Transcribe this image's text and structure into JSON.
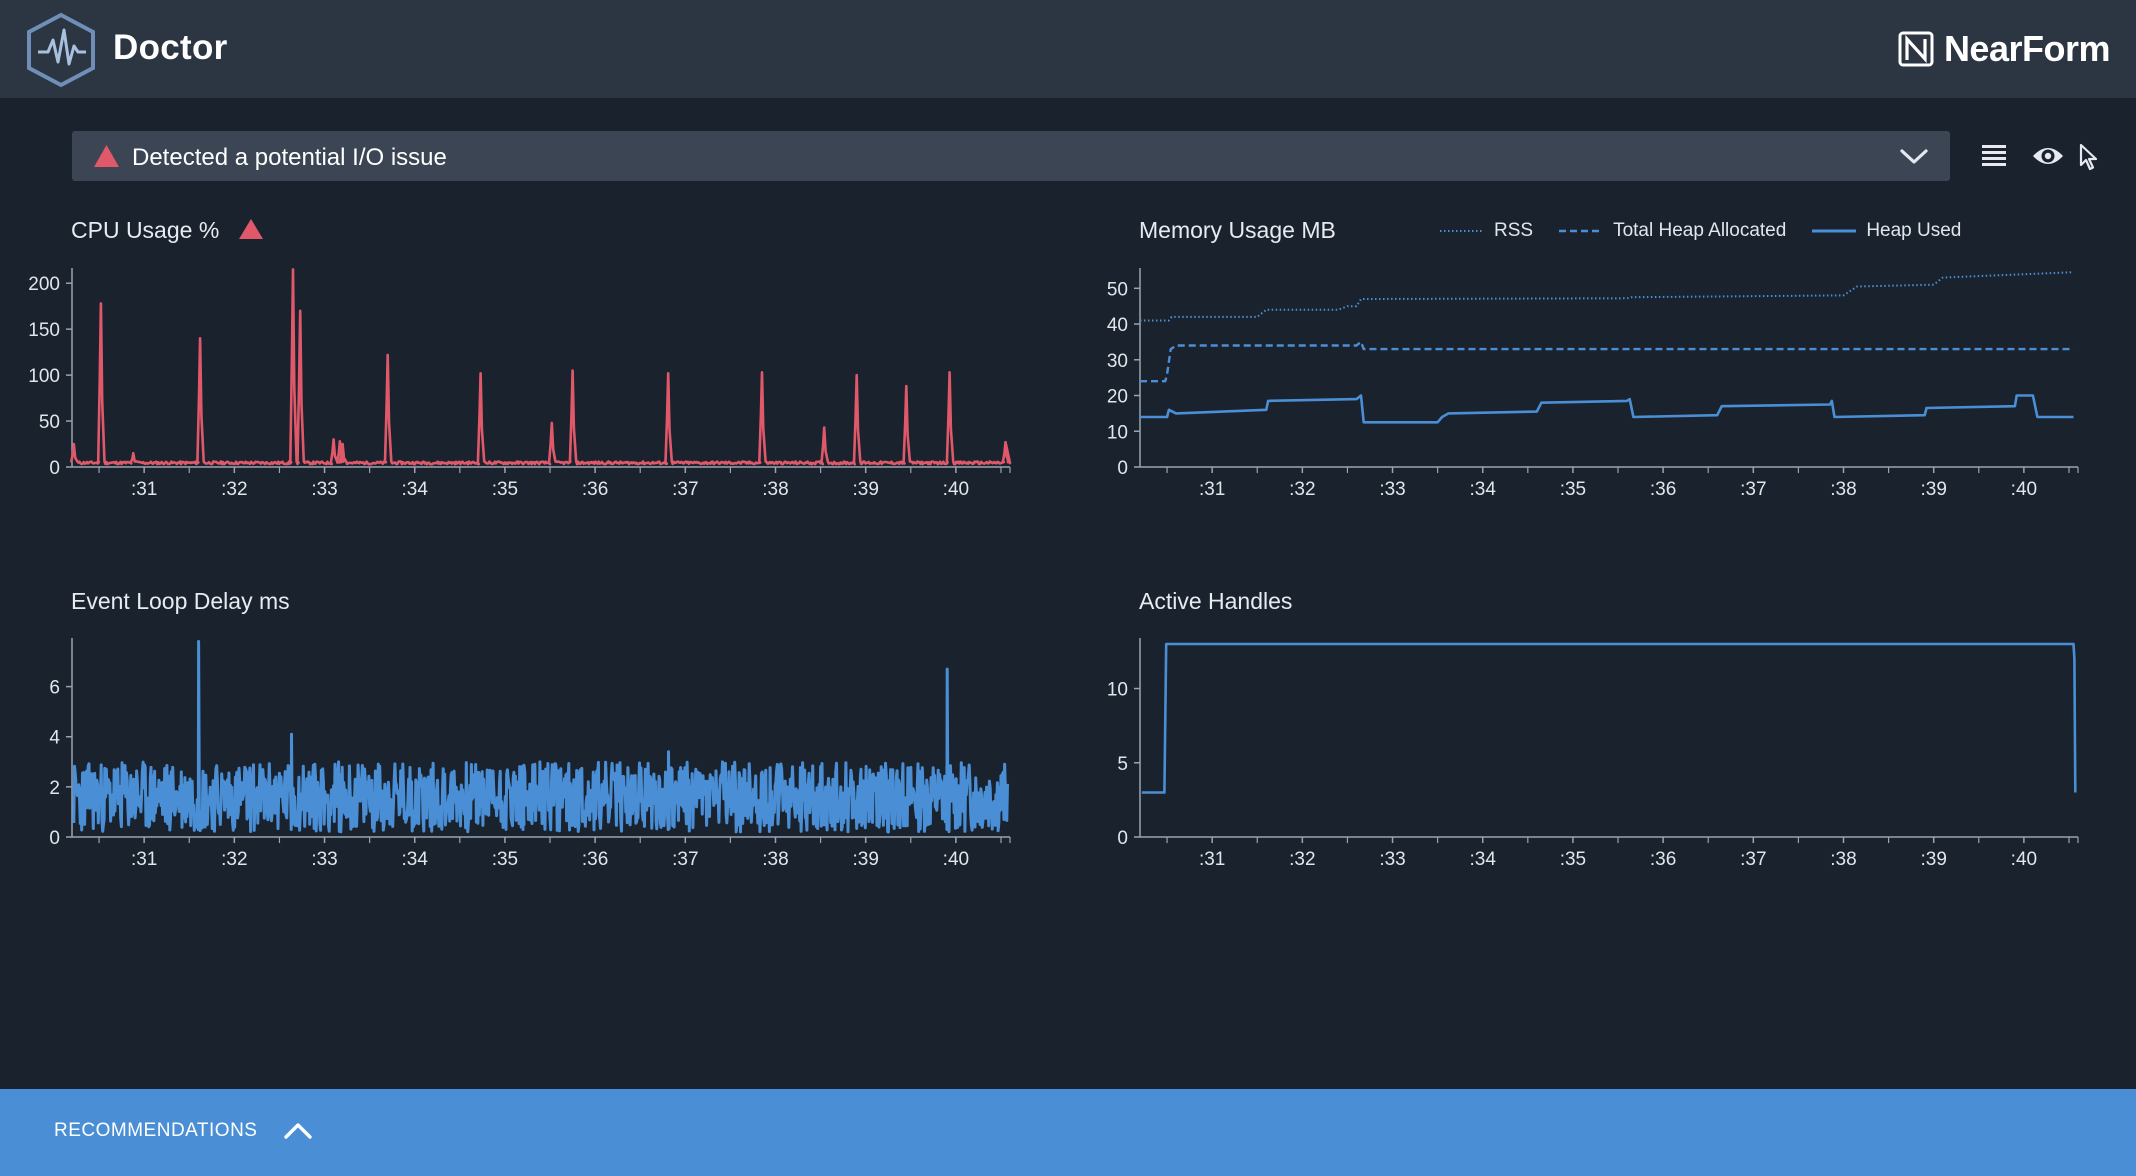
{
  "header": {
    "app_title": "Doctor",
    "brand_name": "NearForm",
    "logo_icon": "heartbeat-hexagon-icon",
    "brand_icon": "nearform-n-icon"
  },
  "alert": {
    "text": "Detected a potential I/O issue",
    "icon": "warning-triangle-icon",
    "color": "#e0596b"
  },
  "toolbar": {
    "items": [
      "list-icon",
      "eye-icon",
      "cursor-icon"
    ]
  },
  "footer": {
    "label": "RECOMMENDATIONS",
    "icon": "chevron-up-icon"
  },
  "colors": {
    "cpu_line": "#e0596b",
    "blue_line": "#4a8fd6",
    "axis": "#9aa4b2",
    "background": "#1a222d"
  },
  "chart_data": [
    {
      "id": "cpu",
      "type": "line",
      "title": "CPU Usage %",
      "warning": true,
      "x_ticks": [
        ":31",
        ":32",
        ":33",
        ":34",
        ":35",
        ":36",
        ":37",
        ":38",
        ":39",
        ":40"
      ],
      "xlim": [
        30.2,
        40.6
      ],
      "y_ticks": [
        0,
        50,
        100,
        150,
        200
      ],
      "ylim": [
        0,
        210
      ],
      "series": [
        {
          "color": "#e0596b",
          "baseline": 3,
          "spikes": [
            [
              30.22,
              25
            ],
            [
              30.52,
              178
            ],
            [
              30.88,
              15
            ],
            [
              31.62,
              140
            ],
            [
              32.65,
              215
            ],
            [
              32.73,
              170
            ],
            [
              33.1,
              30
            ],
            [
              33.17,
              28
            ],
            [
              33.2,
              25
            ],
            [
              33.7,
              122
            ],
            [
              34.73,
              102
            ],
            [
              35.52,
              48
            ],
            [
              35.75,
              105
            ],
            [
              36.81,
              102
            ],
            [
              37.85,
              103
            ],
            [
              38.54,
              43
            ],
            [
              38.9,
              100
            ],
            [
              39.45,
              88
            ],
            [
              39.93,
              103
            ],
            [
              40.55,
              27
            ]
          ]
        }
      ]
    },
    {
      "id": "memory",
      "type": "line",
      "title": "Memory Usage MB",
      "x_ticks": [
        ":31",
        ":32",
        ":33",
        ":34",
        ":35",
        ":36",
        ":37",
        ":38",
        ":39",
        ":40"
      ],
      "xlim": [
        30.2,
        40.6
      ],
      "y_ticks": [
        0,
        10,
        20,
        30,
        40,
        50
      ],
      "ylim": [
        0,
        54
      ],
      "series": [
        {
          "name": "RSS",
          "style": "dotted",
          "color": "#4a8fd6",
          "points": [
            [
              30.2,
              41
            ],
            [
              30.52,
              41
            ],
            [
              30.55,
              42
            ],
            [
              31.5,
              42
            ],
            [
              31.6,
              44
            ],
            [
              32.4,
              44
            ],
            [
              32.5,
              45
            ],
            [
              32.6,
              45
            ],
            [
              32.65,
              47
            ],
            [
              35.6,
              47.2
            ],
            [
              35.65,
              47.5
            ],
            [
              38.0,
              48
            ],
            [
              38.15,
              50.5
            ],
            [
              39.0,
              51
            ],
            [
              39.1,
              53
            ],
            [
              40.55,
              54.5
            ]
          ]
        },
        {
          "name": "Total Heap Allocated",
          "style": "dashed",
          "color": "#4a8fd6",
          "points": [
            [
              30.2,
              24
            ],
            [
              30.48,
              24
            ],
            [
              30.5,
              26
            ],
            [
              30.54,
              33
            ],
            [
              30.6,
              34
            ],
            [
              32.6,
              34
            ],
            [
              32.65,
              35
            ],
            [
              32.68,
              33
            ],
            [
              40.55,
              33
            ]
          ]
        },
        {
          "name": "Heap Used",
          "style": "solid",
          "color": "#4a8fd6",
          "points": [
            [
              30.2,
              14
            ],
            [
              30.5,
              14
            ],
            [
              30.52,
              16
            ],
            [
              30.6,
              15
            ],
            [
              31.6,
              16
            ],
            [
              31.62,
              18.5
            ],
            [
              32.6,
              19
            ],
            [
              32.65,
              20
            ],
            [
              32.68,
              12.5
            ],
            [
              33.5,
              12.5
            ],
            [
              33.55,
              14
            ],
            [
              33.62,
              15
            ],
            [
              34.6,
              15.5
            ],
            [
              34.65,
              18
            ],
            [
              35.6,
              18.5
            ],
            [
              35.63,
              19
            ],
            [
              35.67,
              14
            ],
            [
              36.6,
              14.5
            ],
            [
              36.65,
              17
            ],
            [
              37.85,
              17.5
            ],
            [
              37.87,
              18.5
            ],
            [
              37.9,
              14
            ],
            [
              38.9,
              14.5
            ],
            [
              38.92,
              16.5
            ],
            [
              39.9,
              17
            ],
            [
              39.92,
              20
            ],
            [
              40.1,
              20
            ],
            [
              40.15,
              14
            ],
            [
              40.55,
              14
            ]
          ]
        }
      ]
    },
    {
      "id": "eventloop",
      "type": "line",
      "title": "Event Loop Delay ms",
      "x_ticks": [
        ":31",
        ":32",
        ":33",
        ":34",
        ":35",
        ":36",
        ":37",
        ":38",
        ":39",
        ":40"
      ],
      "xlim": [
        30.2,
        40.6
      ],
      "y_ticks": [
        0,
        2,
        4,
        6
      ],
      "ylim": [
        0,
        7.7
      ],
      "series": [
        {
          "color": "#4a8fd6",
          "noise_range": [
            0.2,
            3.0
          ],
          "spikes": [
            [
              31.6,
              7.8
            ],
            [
              32.63,
              4.1
            ],
            [
              35.2,
              1.6
            ],
            [
              36.81,
              3.4
            ],
            [
              39.9,
              6.7
            ]
          ]
        }
      ]
    },
    {
      "id": "handles",
      "type": "line",
      "title": "Active Handles",
      "x_ticks": [
        ":31",
        ":32",
        ":33",
        ":34",
        ":35",
        ":36",
        ":37",
        ":38",
        ":39",
        ":40"
      ],
      "xlim": [
        30.2,
        40.6
      ],
      "y_ticks": [
        0,
        5,
        10
      ],
      "ylim": [
        0,
        13
      ],
      "series": [
        {
          "color": "#4a8fd6",
          "points": [
            [
              30.22,
              3
            ],
            [
              30.47,
              3
            ],
            [
              30.49,
              13
            ],
            [
              40.55,
              13
            ],
            [
              40.56,
              12
            ],
            [
              40.57,
              3
            ]
          ]
        }
      ]
    }
  ]
}
